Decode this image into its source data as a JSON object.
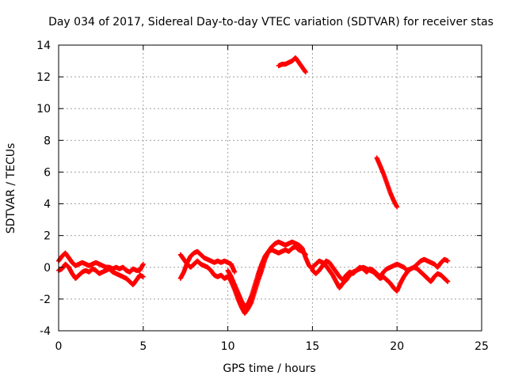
{
  "chart_data": {
    "type": "scatter",
    "title": "Day 034 of 2017, Sidereal Day-to-day VTEC variation (SDTVAR) for receiver stas",
    "xlabel": "GPS time / hours",
    "ylabel": "SDTVAR / TECUs",
    "xlim": [
      0,
      25
    ],
    "ylim": [
      -4,
      14
    ],
    "xticks": [
      "0",
      "5",
      "10",
      "15",
      "20",
      "25"
    ],
    "yticks": [
      "-4",
      "-2",
      "0",
      "2",
      "4",
      "6",
      "8",
      "10",
      "12",
      "14"
    ],
    "grid": true,
    "marker": "+",
    "series": [
      {
        "name": "SDTVAR",
        "color": "#ff0000",
        "segments": [
          {
            "x": [
              0.0,
              0.2,
              0.4,
              0.6,
              0.8,
              1.0,
              1.2,
              1.4,
              1.6,
              1.8,
              2.0,
              2.2,
              2.4,
              2.6,
              2.8,
              3.0,
              3.2,
              3.4,
              3.6,
              3.8,
              4.0,
              4.2,
              4.4,
              4.6,
              4.8,
              5.0
            ],
            "y": [
              0.4,
              0.7,
              0.9,
              0.6,
              0.3,
              0.1,
              0.2,
              0.3,
              0.2,
              0.1,
              0.2,
              0.3,
              0.2,
              0.1,
              0.0,
              0.0,
              -0.1,
              0.0,
              -0.1,
              0.0,
              -0.2,
              -0.3,
              -0.1,
              -0.2,
              -0.2,
              0.2
            ]
          },
          {
            "x": [
              0.0,
              0.2,
              0.4,
              0.6,
              0.8,
              1.0,
              1.2,
              1.4,
              1.6,
              1.8,
              2.0,
              2.2,
              2.4,
              2.6,
              2.8,
              3.0,
              3.2,
              3.4,
              3.6,
              3.8,
              4.0,
              4.2,
              4.4,
              4.6,
              4.8,
              5.0
            ],
            "y": [
              -0.2,
              -0.1,
              0.2,
              0.0,
              -0.4,
              -0.7,
              -0.5,
              -0.3,
              -0.2,
              -0.3,
              -0.1,
              -0.2,
              -0.4,
              -0.3,
              -0.2,
              -0.1,
              -0.3,
              -0.4,
              -0.5,
              -0.6,
              -0.7,
              -0.9,
              -1.1,
              -0.8,
              -0.5,
              -0.6
            ]
          },
          {
            "x": [
              7.2,
              7.4,
              7.6,
              7.8,
              8.0,
              8.2,
              8.4,
              8.6,
              8.8,
              9.0,
              9.2,
              9.4,
              9.6,
              9.8,
              10.0,
              10.2,
              10.4
            ],
            "y": [
              -0.7,
              -0.3,
              0.3,
              0.7,
              0.9,
              1.0,
              0.8,
              0.6,
              0.5,
              0.4,
              0.3,
              0.4,
              0.3,
              0.4,
              0.3,
              0.2,
              -0.3
            ]
          },
          {
            "x": [
              7.2,
              7.4,
              7.6,
              7.8,
              8.0,
              8.2,
              8.4,
              8.6,
              8.8,
              9.0,
              9.2,
              9.4,
              9.6,
              9.8,
              10.0
            ],
            "y": [
              0.8,
              0.5,
              0.2,
              0.0,
              0.2,
              0.4,
              0.2,
              0.1,
              0.0,
              -0.2,
              -0.5,
              -0.6,
              -0.5,
              -0.7,
              -0.6
            ]
          },
          {
            "x": [
              10.0,
              10.2,
              10.4,
              10.6,
              10.8,
              11.0,
              11.2,
              11.4,
              11.6,
              11.8,
              12.0,
              12.2,
              12.4,
              12.6,
              12.8,
              13.0,
              13.2,
              13.4,
              13.6,
              13.8,
              14.0,
              14.2,
              14.4,
              14.6,
              14.8,
              15.0
            ],
            "y": [
              -0.5,
              -0.9,
              -1.4,
              -2.0,
              -2.5,
              -2.9,
              -2.6,
              -2.2,
              -1.5,
              -0.8,
              -0.2,
              0.5,
              1.0,
              1.3,
              1.5,
              1.6,
              1.5,
              1.4,
              1.5,
              1.6,
              1.5,
              1.4,
              1.2,
              0.6,
              0.1,
              -0.1
            ]
          },
          {
            "x": [
              10.0,
              10.2,
              10.4,
              10.6,
              10.8,
              11.0,
              11.2,
              11.4,
              11.6,
              11.8,
              12.0,
              12.2,
              12.4,
              12.6,
              12.8,
              13.0,
              13.2,
              13.4,
              13.6,
              13.8,
              14.0,
              14.2,
              14.4,
              14.6
            ],
            "y": [
              -0.2,
              -0.6,
              -1.1,
              -1.6,
              -2.1,
              -2.5,
              -2.3,
              -1.8,
              -1.1,
              -0.4,
              0.2,
              0.7,
              1.0,
              1.1,
              1.0,
              0.9,
              1.0,
              1.1,
              1.0,
              1.2,
              1.3,
              1.1,
              1.0,
              0.8
            ]
          },
          {
            "x": [
              13.0,
              13.2,
              13.4,
              13.6,
              13.8,
              14.0,
              14.2,
              14.4,
              14.6
            ],
            "y": [
              12.7,
              12.8,
              12.8,
              12.9,
              13.0,
              13.2,
              12.9,
              12.6,
              12.3
            ]
          },
          {
            "x": [
              15.0,
              15.2,
              15.4,
              15.6,
              15.8,
              16.0,
              16.2,
              16.4,
              16.6,
              16.8,
              17.0,
              17.2,
              17.4,
              17.6,
              17.8,
              18.0,
              18.2,
              18.4,
              18.6,
              18.8,
              19.0,
              19.2,
              19.4,
              19.6,
              19.8,
              20.0,
              20.2,
              20.4,
              20.6,
              20.8,
              21.0,
              21.2,
              21.4,
              21.6,
              21.8,
              22.0,
              22.2,
              22.4,
              22.6,
              22.8,
              23.0
            ],
            "y": [
              0.0,
              0.2,
              0.4,
              0.3,
              0.1,
              -0.2,
              -0.5,
              -0.9,
              -1.3,
              -1.0,
              -0.8,
              -0.5,
              -0.3,
              -0.2,
              -0.1,
              0.0,
              -0.1,
              -0.2,
              -0.3,
              -0.5,
              -0.7,
              -0.6,
              -0.8,
              -1.0,
              -1.3,
              -1.5,
              -1.0,
              -0.6,
              -0.3,
              -0.1,
              0.0,
              -0.1,
              -0.3,
              -0.5,
              -0.7,
              -0.9,
              -0.6,
              -0.4,
              -0.5,
              -0.7,
              -0.9
            ]
          },
          {
            "x": [
              15.0,
              15.2,
              15.4,
              15.6,
              15.8,
              16.0,
              16.2,
              16.4,
              16.6,
              16.8,
              17.0,
              17.2,
              17.4,
              17.6,
              17.8,
              18.0,
              18.2,
              18.4,
              18.6,
              18.8,
              19.0,
              19.2,
              19.4,
              19.6,
              19.8,
              20.0,
              20.2,
              20.4,
              20.6,
              20.8,
              21.0,
              21.2,
              21.4,
              21.6,
              21.8,
              22.0,
              22.2,
              22.4,
              22.6,
              22.8,
              23.0
            ],
            "y": [
              -0.2,
              -0.4,
              -0.2,
              0.1,
              0.4,
              0.3,
              0.0,
              -0.3,
              -0.6,
              -0.8,
              -0.5,
              -0.3,
              -0.4,
              -0.2,
              0.0,
              -0.1,
              -0.3,
              -0.1,
              -0.2,
              -0.4,
              -0.6,
              -0.3,
              -0.1,
              0.0,
              0.1,
              0.2,
              0.1,
              0.0,
              -0.2,
              -0.1,
              0.0,
              0.2,
              0.4,
              0.5,
              0.4,
              0.3,
              0.2,
              0.0,
              0.3,
              0.5,
              0.4
            ]
          },
          {
            "x": [
              18.8,
              19.0,
              19.2,
              19.4,
              19.6,
              19.8,
              20.0
            ],
            "y": [
              6.9,
              6.4,
              5.9,
              5.3,
              4.7,
              4.2,
              3.8
            ]
          }
        ]
      }
    ]
  }
}
